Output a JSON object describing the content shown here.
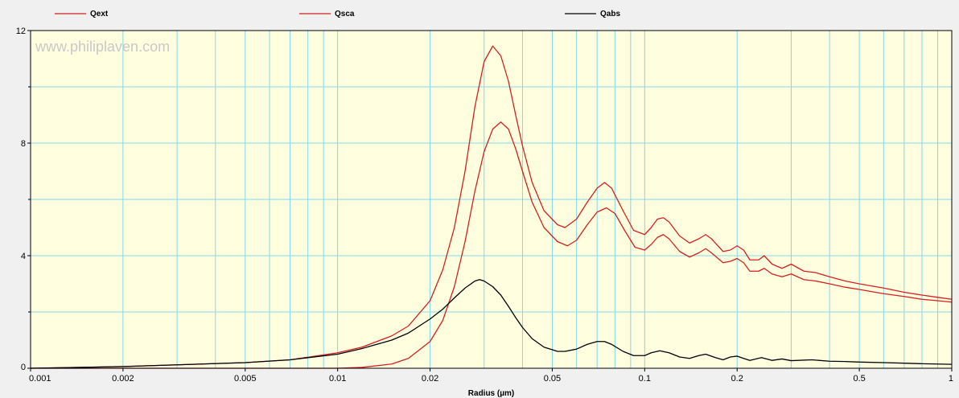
{
  "watermark": "www.philiplaven.com",
  "colors": {
    "plot_background": "#ffffe0",
    "grid": "#7fd8e8",
    "qext": "#d42020",
    "qsca": "#d42020",
    "qabs": "#000000"
  },
  "chart_data": {
    "type": "line",
    "xscale": "log",
    "xlim": [
      0.001,
      1
    ],
    "ylim": [
      0,
      12
    ],
    "xlabel": "Radius (µm)",
    "ylabel": "",
    "grid": true,
    "legend_position": "top",
    "x_ticks": [
      "0.001",
      "0.002",
      "0.005",
      "0.01",
      "0.02",
      "0.05",
      "0.1",
      "0.2",
      "0.5",
      "1"
    ],
    "y_ticks": [
      "0",
      "4",
      "8",
      "12"
    ],
    "series": [
      {
        "name": "Qext",
        "color": "#d42020",
        "points": [
          [
            0.001,
            0.0
          ],
          [
            0.002,
            0.06
          ],
          [
            0.005,
            0.2
          ],
          [
            0.007,
            0.3
          ],
          [
            0.01,
            0.55
          ],
          [
            0.012,
            0.75
          ],
          [
            0.015,
            1.15
          ],
          [
            0.017,
            1.5
          ],
          [
            0.02,
            2.4
          ],
          [
            0.022,
            3.5
          ],
          [
            0.024,
            5.0
          ],
          [
            0.026,
            7.0
          ],
          [
            0.028,
            9.3
          ],
          [
            0.03,
            10.9
          ],
          [
            0.032,
            11.45
          ],
          [
            0.034,
            11.1
          ],
          [
            0.036,
            10.2
          ],
          [
            0.038,
            9.0
          ],
          [
            0.04,
            7.9
          ],
          [
            0.043,
            6.6
          ],
          [
            0.047,
            5.6
          ],
          [
            0.052,
            5.1
          ],
          [
            0.055,
            5.0
          ],
          [
            0.06,
            5.3
          ],
          [
            0.065,
            5.9
          ],
          [
            0.07,
            6.4
          ],
          [
            0.074,
            6.6
          ],
          [
            0.078,
            6.4
          ],
          [
            0.085,
            5.6
          ],
          [
            0.092,
            4.9
          ],
          [
            0.1,
            4.75
          ],
          [
            0.105,
            5.0
          ],
          [
            0.11,
            5.3
          ],
          [
            0.115,
            5.35
          ],
          [
            0.12,
            5.2
          ],
          [
            0.13,
            4.7
          ],
          [
            0.14,
            4.45
          ],
          [
            0.15,
            4.6
          ],
          [
            0.158,
            4.75
          ],
          [
            0.165,
            4.6
          ],
          [
            0.18,
            4.15
          ],
          [
            0.19,
            4.2
          ],
          [
            0.2,
            4.35
          ],
          [
            0.21,
            4.2
          ],
          [
            0.22,
            3.85
          ],
          [
            0.235,
            3.85
          ],
          [
            0.245,
            4.0
          ],
          [
            0.26,
            3.7
          ],
          [
            0.28,
            3.55
          ],
          [
            0.3,
            3.7
          ],
          [
            0.33,
            3.45
          ],
          [
            0.36,
            3.4
          ],
          [
            0.4,
            3.25
          ],
          [
            0.45,
            3.1
          ],
          [
            0.5,
            3.0
          ],
          [
            0.6,
            2.85
          ],
          [
            0.7,
            2.7
          ],
          [
            0.8,
            2.6
          ],
          [
            0.9,
            2.52
          ],
          [
            1.0,
            2.45
          ]
        ]
      },
      {
        "name": "Qsca",
        "color": "#d42020",
        "points": [
          [
            0.001,
            0.0
          ],
          [
            0.005,
            0.0
          ],
          [
            0.01,
            0.0
          ],
          [
            0.012,
            0.03
          ],
          [
            0.015,
            0.15
          ],
          [
            0.017,
            0.35
          ],
          [
            0.02,
            0.95
          ],
          [
            0.022,
            1.7
          ],
          [
            0.024,
            2.9
          ],
          [
            0.026,
            4.5
          ],
          [
            0.028,
            6.3
          ],
          [
            0.03,
            7.7
          ],
          [
            0.032,
            8.5
          ],
          [
            0.034,
            8.75
          ],
          [
            0.036,
            8.5
          ],
          [
            0.038,
            7.8
          ],
          [
            0.04,
            7.0
          ],
          [
            0.043,
            5.9
          ],
          [
            0.047,
            5.0
          ],
          [
            0.052,
            4.5
          ],
          [
            0.056,
            4.35
          ],
          [
            0.06,
            4.55
          ],
          [
            0.065,
            5.1
          ],
          [
            0.07,
            5.55
          ],
          [
            0.075,
            5.7
          ],
          [
            0.08,
            5.5
          ],
          [
            0.086,
            4.9
          ],
          [
            0.093,
            4.3
          ],
          [
            0.1,
            4.2
          ],
          [
            0.105,
            4.4
          ],
          [
            0.11,
            4.65
          ],
          [
            0.115,
            4.75
          ],
          [
            0.12,
            4.6
          ],
          [
            0.13,
            4.15
          ],
          [
            0.14,
            3.95
          ],
          [
            0.15,
            4.1
          ],
          [
            0.158,
            4.25
          ],
          [
            0.165,
            4.1
          ],
          [
            0.18,
            3.75
          ],
          [
            0.19,
            3.8
          ],
          [
            0.2,
            3.9
          ],
          [
            0.21,
            3.75
          ],
          [
            0.22,
            3.45
          ],
          [
            0.235,
            3.45
          ],
          [
            0.245,
            3.55
          ],
          [
            0.26,
            3.35
          ],
          [
            0.28,
            3.25
          ],
          [
            0.3,
            3.35
          ],
          [
            0.33,
            3.15
          ],
          [
            0.36,
            3.1
          ],
          [
            0.4,
            3.0
          ],
          [
            0.45,
            2.88
          ],
          [
            0.5,
            2.8
          ],
          [
            0.6,
            2.65
          ],
          [
            0.7,
            2.55
          ],
          [
            0.8,
            2.45
          ],
          [
            0.9,
            2.4
          ],
          [
            1.0,
            2.35
          ]
        ]
      },
      {
        "name": "Qabs",
        "color": "#000000",
        "points": [
          [
            0.001,
            0.0
          ],
          [
            0.002,
            0.06
          ],
          [
            0.005,
            0.2
          ],
          [
            0.007,
            0.3
          ],
          [
            0.01,
            0.5
          ],
          [
            0.012,
            0.7
          ],
          [
            0.015,
            1.0
          ],
          [
            0.017,
            1.25
          ],
          [
            0.02,
            1.75
          ],
          [
            0.022,
            2.1
          ],
          [
            0.024,
            2.5
          ],
          [
            0.026,
            2.85
          ],
          [
            0.028,
            3.1
          ],
          [
            0.029,
            3.15
          ],
          [
            0.03,
            3.1
          ],
          [
            0.032,
            2.9
          ],
          [
            0.034,
            2.6
          ],
          [
            0.036,
            2.2
          ],
          [
            0.038,
            1.8
          ],
          [
            0.04,
            1.45
          ],
          [
            0.043,
            1.05
          ],
          [
            0.047,
            0.75
          ],
          [
            0.052,
            0.6
          ],
          [
            0.055,
            0.6
          ],
          [
            0.06,
            0.68
          ],
          [
            0.065,
            0.85
          ],
          [
            0.07,
            0.95
          ],
          [
            0.074,
            0.95
          ],
          [
            0.078,
            0.85
          ],
          [
            0.085,
            0.6
          ],
          [
            0.092,
            0.45
          ],
          [
            0.1,
            0.45
          ],
          [
            0.105,
            0.55
          ],
          [
            0.112,
            0.62
          ],
          [
            0.12,
            0.55
          ],
          [
            0.13,
            0.4
          ],
          [
            0.14,
            0.35
          ],
          [
            0.15,
            0.45
          ],
          [
            0.158,
            0.5
          ],
          [
            0.17,
            0.38
          ],
          [
            0.18,
            0.3
          ],
          [
            0.19,
            0.4
          ],
          [
            0.2,
            0.43
          ],
          [
            0.21,
            0.35
          ],
          [
            0.22,
            0.28
          ],
          [
            0.24,
            0.38
          ],
          [
            0.26,
            0.28
          ],
          [
            0.28,
            0.33
          ],
          [
            0.3,
            0.27
          ],
          [
            0.35,
            0.3
          ],
          [
            0.4,
            0.25
          ],
          [
            0.45,
            0.24
          ],
          [
            0.5,
            0.22
          ],
          [
            0.6,
            0.2
          ],
          [
            0.7,
            0.18
          ],
          [
            0.8,
            0.16
          ],
          [
            0.9,
            0.15
          ],
          [
            1.0,
            0.14
          ]
        ]
      }
    ]
  }
}
